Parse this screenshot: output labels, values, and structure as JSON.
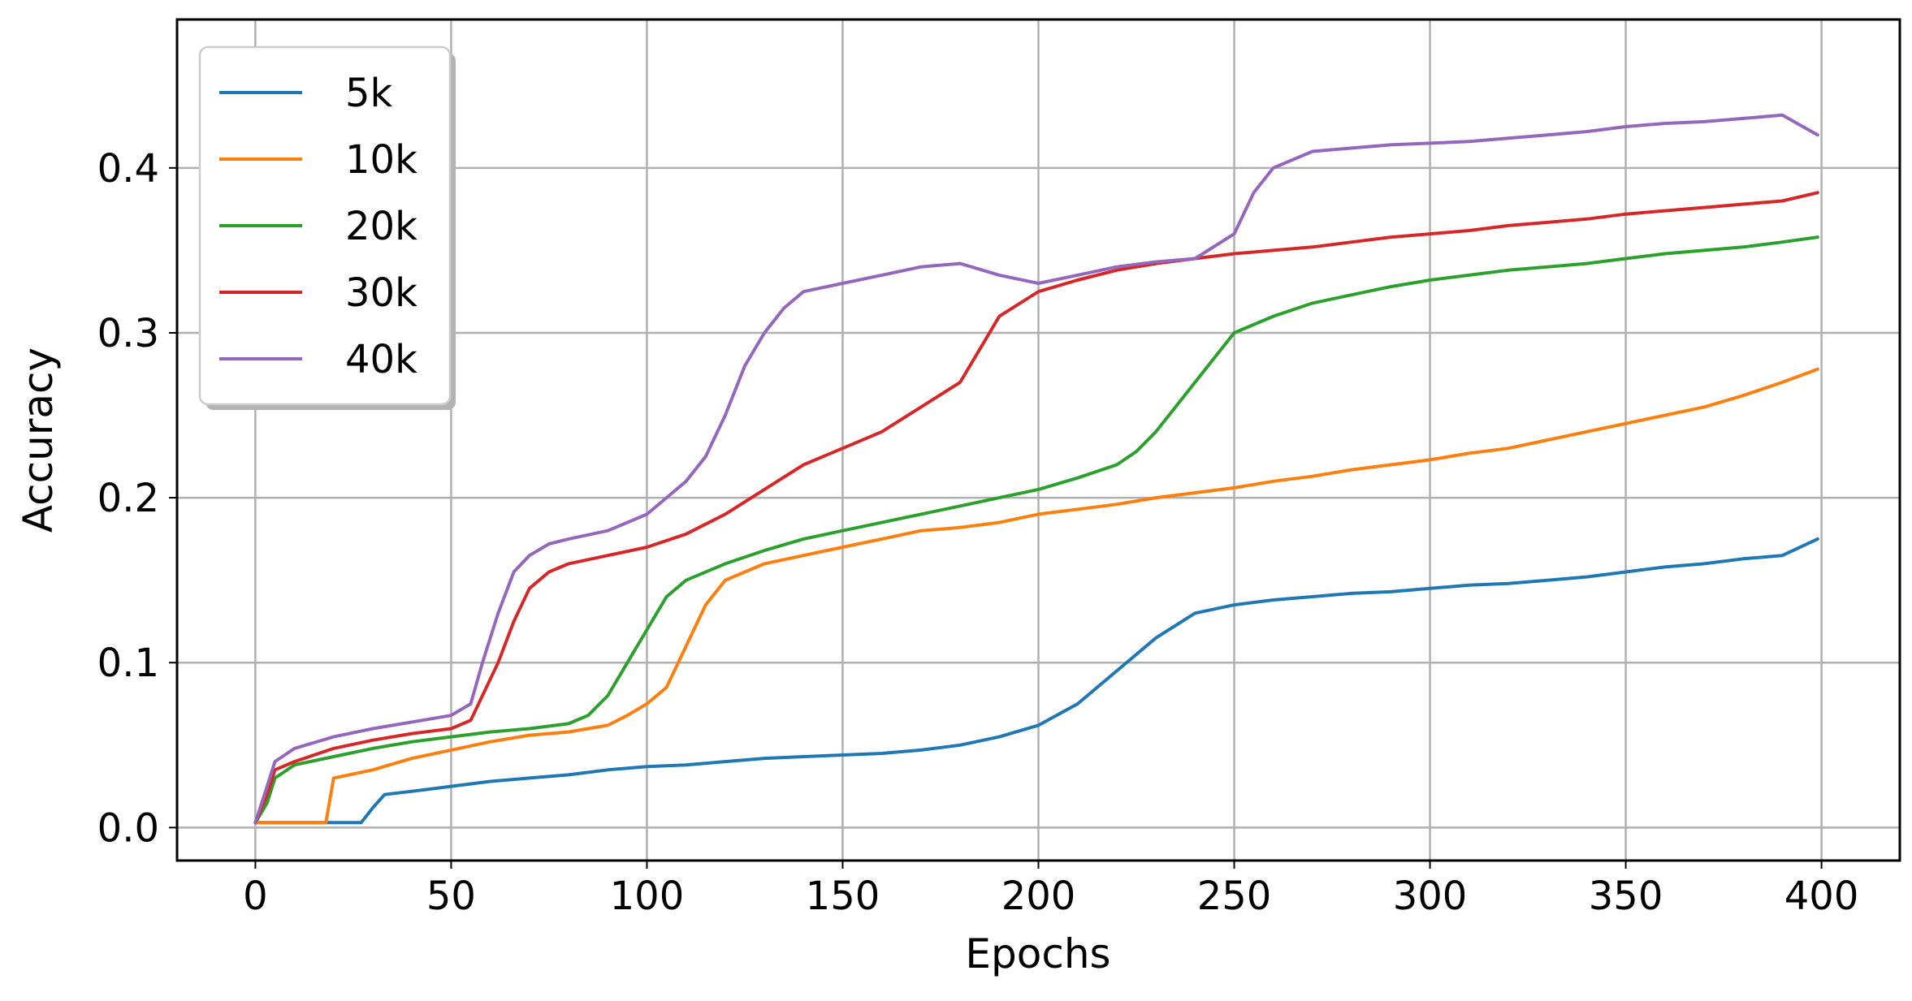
{
  "chart_data": {
    "type": "line",
    "title": "",
    "xlabel": "Epochs",
    "ylabel": "Accuracy",
    "xlim": [
      -20,
      420
    ],
    "ylim": [
      -0.02,
      0.49
    ],
    "xticks": [
      0,
      50,
      100,
      150,
      200,
      250,
      300,
      350,
      400
    ],
    "xtick_labels": [
      "0",
      "50",
      "100",
      "150",
      "200",
      "250",
      "300",
      "350",
      "400"
    ],
    "yticks": [
      0.0,
      0.1,
      0.2,
      0.3,
      0.4
    ],
    "ytick_labels": [
      "0.0",
      "0.1",
      "0.2",
      "0.3",
      "0.4"
    ],
    "grid": true,
    "legend_position": "top-left",
    "series": [
      {
        "name": "5k",
        "color": "#1f77b4",
        "points": [
          [
            0,
            0.003
          ],
          [
            10,
            0.003
          ],
          [
            20,
            0.003
          ],
          [
            27,
            0.003
          ],
          [
            30,
            0.012
          ],
          [
            33,
            0.02
          ],
          [
            40,
            0.022
          ],
          [
            50,
            0.025
          ],
          [
            60,
            0.028
          ],
          [
            70,
            0.03
          ],
          [
            80,
            0.032
          ],
          [
            90,
            0.035
          ],
          [
            100,
            0.037
          ],
          [
            110,
            0.038
          ],
          [
            120,
            0.04
          ],
          [
            130,
            0.042
          ],
          [
            140,
            0.043
          ],
          [
            150,
            0.044
          ],
          [
            160,
            0.045
          ],
          [
            170,
            0.047
          ],
          [
            180,
            0.05
          ],
          [
            190,
            0.055
          ],
          [
            200,
            0.062
          ],
          [
            210,
            0.075
          ],
          [
            220,
            0.095
          ],
          [
            230,
            0.115
          ],
          [
            240,
            0.13
          ],
          [
            250,
            0.135
          ],
          [
            260,
            0.138
          ],
          [
            270,
            0.14
          ],
          [
            280,
            0.142
          ],
          [
            290,
            0.143
          ],
          [
            300,
            0.145
          ],
          [
            310,
            0.147
          ],
          [
            320,
            0.148
          ],
          [
            330,
            0.15
          ],
          [
            340,
            0.152
          ],
          [
            350,
            0.155
          ],
          [
            360,
            0.158
          ],
          [
            370,
            0.16
          ],
          [
            380,
            0.163
          ],
          [
            390,
            0.165
          ],
          [
            399,
            0.175
          ]
        ]
      },
      {
        "name": "10k",
        "color": "#ff7f0e",
        "points": [
          [
            0,
            0.003
          ],
          [
            10,
            0.003
          ],
          [
            18,
            0.003
          ],
          [
            20,
            0.03
          ],
          [
            30,
            0.035
          ],
          [
            40,
            0.042
          ],
          [
            50,
            0.047
          ],
          [
            60,
            0.052
          ],
          [
            70,
            0.056
          ],
          [
            80,
            0.058
          ],
          [
            90,
            0.062
          ],
          [
            95,
            0.068
          ],
          [
            100,
            0.075
          ],
          [
            105,
            0.085
          ],
          [
            110,
            0.11
          ],
          [
            115,
            0.135
          ],
          [
            120,
            0.15
          ],
          [
            130,
            0.16
          ],
          [
            140,
            0.165
          ],
          [
            150,
            0.17
          ],
          [
            160,
            0.175
          ],
          [
            170,
            0.18
          ],
          [
            180,
            0.182
          ],
          [
            190,
            0.185
          ],
          [
            200,
            0.19
          ],
          [
            210,
            0.193
          ],
          [
            220,
            0.196
          ],
          [
            230,
            0.2
          ],
          [
            240,
            0.203
          ],
          [
            250,
            0.206
          ],
          [
            260,
            0.21
          ],
          [
            270,
            0.213
          ],
          [
            280,
            0.217
          ],
          [
            290,
            0.22
          ],
          [
            300,
            0.223
          ],
          [
            310,
            0.227
          ],
          [
            320,
            0.23
          ],
          [
            330,
            0.235
          ],
          [
            340,
            0.24
          ],
          [
            350,
            0.245
          ],
          [
            360,
            0.25
          ],
          [
            370,
            0.255
          ],
          [
            380,
            0.262
          ],
          [
            390,
            0.27
          ],
          [
            399,
            0.278
          ]
        ]
      },
      {
        "name": "20k",
        "color": "#2ca02c",
        "points": [
          [
            0,
            0.003
          ],
          [
            3,
            0.015
          ],
          [
            5,
            0.03
          ],
          [
            10,
            0.038
          ],
          [
            20,
            0.043
          ],
          [
            30,
            0.048
          ],
          [
            40,
            0.052
          ],
          [
            50,
            0.055
          ],
          [
            60,
            0.058
          ],
          [
            70,
            0.06
          ],
          [
            80,
            0.063
          ],
          [
            85,
            0.068
          ],
          [
            90,
            0.08
          ],
          [
            95,
            0.1
          ],
          [
            100,
            0.12
          ],
          [
            105,
            0.14
          ],
          [
            110,
            0.15
          ],
          [
            120,
            0.16
          ],
          [
            130,
            0.168
          ],
          [
            140,
            0.175
          ],
          [
            150,
            0.18
          ],
          [
            160,
            0.185
          ],
          [
            170,
            0.19
          ],
          [
            180,
            0.195
          ],
          [
            190,
            0.2
          ],
          [
            200,
            0.205
          ],
          [
            210,
            0.212
          ],
          [
            220,
            0.22
          ],
          [
            225,
            0.228
          ],
          [
            230,
            0.24
          ],
          [
            235,
            0.255
          ],
          [
            240,
            0.27
          ],
          [
            245,
            0.285
          ],
          [
            250,
            0.3
          ],
          [
            260,
            0.31
          ],
          [
            270,
            0.318
          ],
          [
            280,
            0.323
          ],
          [
            290,
            0.328
          ],
          [
            300,
            0.332
          ],
          [
            310,
            0.335
          ],
          [
            320,
            0.338
          ],
          [
            330,
            0.34
          ],
          [
            340,
            0.342
          ],
          [
            350,
            0.345
          ],
          [
            360,
            0.348
          ],
          [
            370,
            0.35
          ],
          [
            380,
            0.352
          ],
          [
            390,
            0.355
          ],
          [
            399,
            0.358
          ]
        ]
      },
      {
        "name": "30k",
        "color": "#d62728",
        "points": [
          [
            0,
            0.003
          ],
          [
            3,
            0.02
          ],
          [
            5,
            0.035
          ],
          [
            10,
            0.04
          ],
          [
            20,
            0.048
          ],
          [
            30,
            0.053
          ],
          [
            40,
            0.057
          ],
          [
            50,
            0.06
          ],
          [
            55,
            0.065
          ],
          [
            58,
            0.08
          ],
          [
            62,
            0.1
          ],
          [
            66,
            0.125
          ],
          [
            70,
            0.145
          ],
          [
            75,
            0.155
          ],
          [
            80,
            0.16
          ],
          [
            90,
            0.165
          ],
          [
            100,
            0.17
          ],
          [
            110,
            0.178
          ],
          [
            120,
            0.19
          ],
          [
            130,
            0.205
          ],
          [
            140,
            0.22
          ],
          [
            150,
            0.23
          ],
          [
            160,
            0.24
          ],
          [
            170,
            0.255
          ],
          [
            180,
            0.27
          ],
          [
            185,
            0.29
          ],
          [
            190,
            0.31
          ],
          [
            200,
            0.325
          ],
          [
            210,
            0.332
          ],
          [
            220,
            0.338
          ],
          [
            230,
            0.342
          ],
          [
            240,
            0.345
          ],
          [
            250,
            0.348
          ],
          [
            260,
            0.35
          ],
          [
            270,
            0.352
          ],
          [
            280,
            0.355
          ],
          [
            290,
            0.358
          ],
          [
            300,
            0.36
          ],
          [
            310,
            0.362
          ],
          [
            320,
            0.365
          ],
          [
            330,
            0.367
          ],
          [
            340,
            0.369
          ],
          [
            350,
            0.372
          ],
          [
            360,
            0.374
          ],
          [
            370,
            0.376
          ],
          [
            380,
            0.378
          ],
          [
            390,
            0.38
          ],
          [
            399,
            0.385
          ]
        ]
      },
      {
        "name": "40k",
        "color": "#9467bd",
        "points": [
          [
            0,
            0.003
          ],
          [
            3,
            0.025
          ],
          [
            5,
            0.04
          ],
          [
            10,
            0.048
          ],
          [
            20,
            0.055
          ],
          [
            30,
            0.06
          ],
          [
            40,
            0.064
          ],
          [
            50,
            0.068
          ],
          [
            55,
            0.075
          ],
          [
            58,
            0.1
          ],
          [
            62,
            0.13
          ],
          [
            66,
            0.155
          ],
          [
            70,
            0.165
          ],
          [
            75,
            0.172
          ],
          [
            80,
            0.175
          ],
          [
            90,
            0.18
          ],
          [
            100,
            0.19
          ],
          [
            105,
            0.2
          ],
          [
            110,
            0.21
          ],
          [
            115,
            0.225
          ],
          [
            120,
            0.25
          ],
          [
            125,
            0.28
          ],
          [
            130,
            0.3
          ],
          [
            135,
            0.315
          ],
          [
            140,
            0.325
          ],
          [
            150,
            0.33
          ],
          [
            160,
            0.335
          ],
          [
            170,
            0.34
          ],
          [
            180,
            0.342
          ],
          [
            190,
            0.335
          ],
          [
            200,
            0.33
          ],
          [
            210,
            0.335
          ],
          [
            220,
            0.34
          ],
          [
            230,
            0.343
          ],
          [
            240,
            0.345
          ],
          [
            250,
            0.36
          ],
          [
            255,
            0.385
          ],
          [
            260,
            0.4
          ],
          [
            270,
            0.41
          ],
          [
            280,
            0.412
          ],
          [
            290,
            0.414
          ],
          [
            300,
            0.415
          ],
          [
            310,
            0.416
          ],
          [
            320,
            0.418
          ],
          [
            330,
            0.42
          ],
          [
            340,
            0.422
          ],
          [
            350,
            0.425
          ],
          [
            360,
            0.427
          ],
          [
            370,
            0.428
          ],
          [
            380,
            0.43
          ],
          [
            390,
            0.432
          ],
          [
            399,
            0.42
          ]
        ]
      }
    ]
  }
}
